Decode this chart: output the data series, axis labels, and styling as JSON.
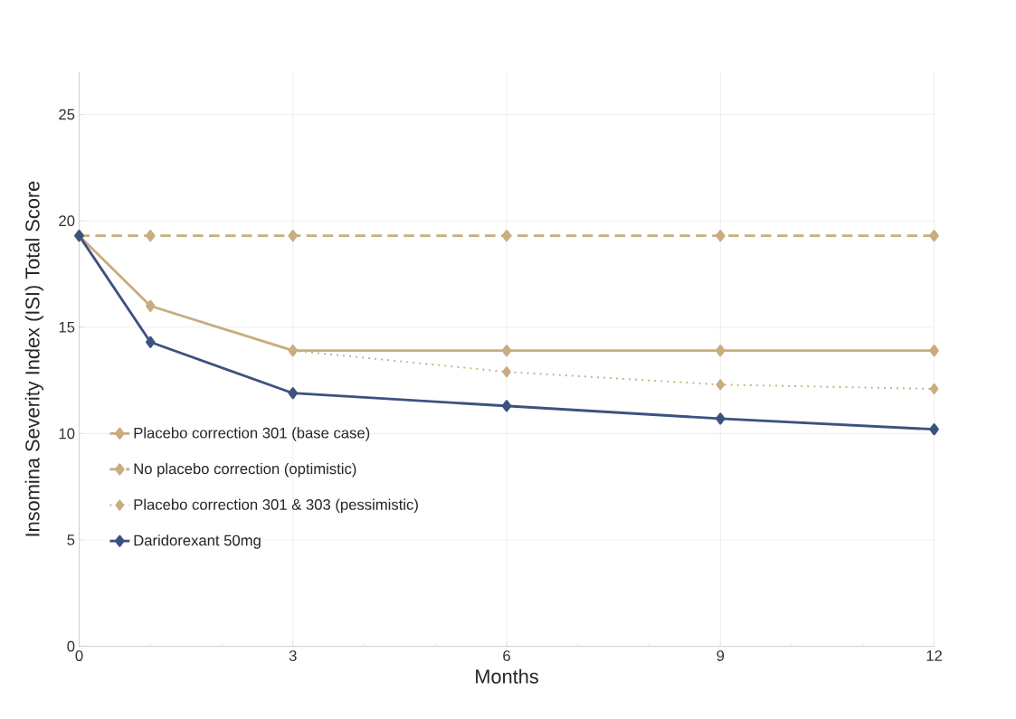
{
  "chart_data": {
    "type": "line",
    "xlabel": "Months",
    "ylabel": "Insomina Severity Index (ISI) Total Score",
    "x": [
      0,
      1,
      3,
      6,
      9,
      12
    ],
    "xlim": [
      0,
      12
    ],
    "ylim": [
      0,
      27
    ],
    "xticks": [
      0,
      {
        "value": 1,
        "label": null
      },
      {
        "value": 2,
        "label": null
      },
      3,
      {
        "value": 4,
        "label": null
      },
      {
        "value": 5,
        "label": null
      },
      6,
      {
        "value": 7,
        "label": null
      },
      {
        "value": 8,
        "label": null
      },
      9,
      {
        "value": 10,
        "label": null
      },
      {
        "value": 11,
        "label": null
      },
      12
    ],
    "yticks": [
      0,
      5,
      10,
      15,
      20,
      25
    ],
    "grid": true,
    "legend": "left",
    "marker": "diamond",
    "series": [
      {
        "name": "Placebo correction 301 (base case)",
        "color": "#c9ad7f",
        "line_style": "solid",
        "values": [
          19.3,
          16.0,
          13.9,
          13.9,
          13.9,
          13.9
        ]
      },
      {
        "name": "No placebo correction (optimistic)",
        "color": "#c9ad7f",
        "line_style": "dashed",
        "values": [
          19.3,
          19.3,
          19.3,
          19.3,
          19.3,
          19.3
        ]
      },
      {
        "name": "Placebo correction 301 & 303 (pessimistic)",
        "color": "#c9ad7f",
        "line_style": "dotted",
        "values": [
          19.3,
          16.0,
          13.9,
          12.9,
          12.3,
          12.1
        ]
      },
      {
        "name": "Daridorexant 50mg",
        "color": "#3c527f",
        "line_style": "solid",
        "values": [
          19.3,
          14.3,
          11.9,
          11.3,
          10.7,
          10.2
        ]
      }
    ]
  }
}
